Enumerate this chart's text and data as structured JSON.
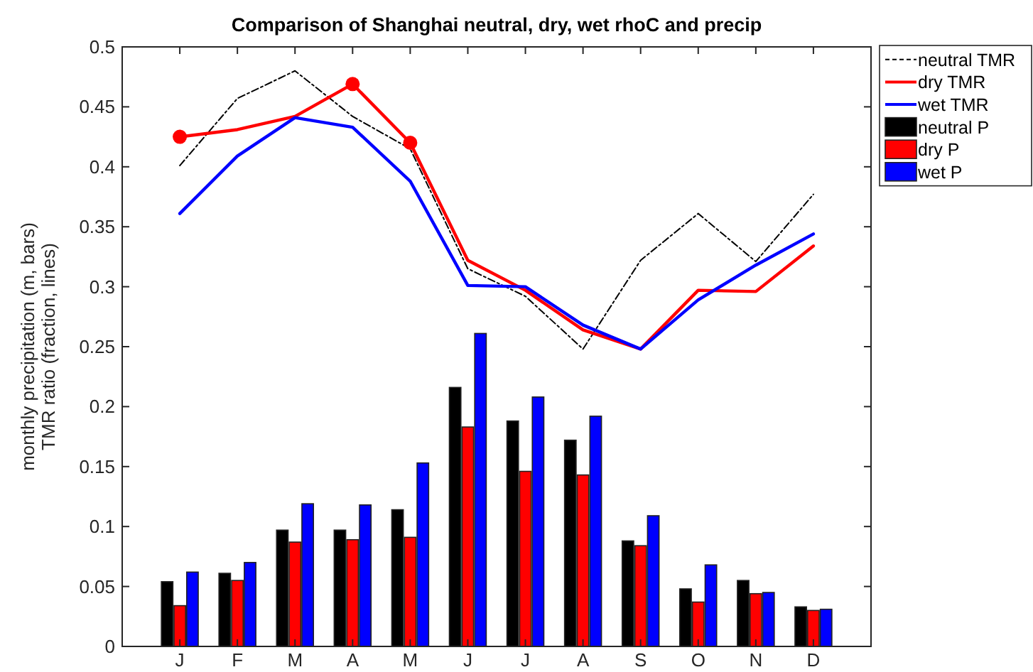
{
  "chart_data": {
    "type": "bar",
    "title": "Comparison of Shanghai neutral, dry, wet rhoC and precip",
    "ylabel": "monthly precipitation (m, bars)\nTMR ratio (fraction, lines)",
    "categories": [
      "J",
      "F",
      "M",
      "A",
      "M",
      "J",
      "J",
      "A",
      "S",
      "O",
      "N",
      "D"
    ],
    "ylim": [
      0,
      0.5
    ],
    "yticks": [
      0,
      0.05,
      0.1,
      0.15,
      0.2,
      0.25,
      0.3,
      0.35,
      0.4,
      0.45,
      0.5
    ],
    "legend": "top right",
    "series": [
      {
        "name": "neutral TMR",
        "type": "line",
        "color": "#000000",
        "line_style": "dashed",
        "values": [
          0.401,
          0.457,
          0.48,
          0.442,
          0.415,
          0.315,
          0.292,
          0.248,
          0.322,
          0.361,
          0.321,
          0.377
        ]
      },
      {
        "name": "dry TMR",
        "type": "line",
        "color": "#ff0000",
        "values": [
          0.425,
          0.431,
          0.442,
          0.469,
          0.42,
          0.322,
          0.297,
          0.264,
          0.248,
          0.297,
          0.296,
          0.334
        ]
      },
      {
        "name": "wet TMR",
        "type": "line",
        "color": "#0000ff",
        "values": [
          0.361,
          0.409,
          0.441,
          0.433,
          0.388,
          0.301,
          0.3,
          0.268,
          0.248,
          0.289,
          0.318,
          0.344
        ]
      },
      {
        "type": "scatter",
        "color": "#ff0000",
        "marker": "circle",
        "values": [
          0.425,
          null,
          null,
          0.469,
          0.42,
          null,
          null,
          null,
          null,
          null,
          null,
          null
        ]
      },
      {
        "name": "neutral P",
        "type": "bar",
        "color": "#000000",
        "values": [
          0.054,
          0.061,
          0.097,
          0.097,
          0.114,
          0.216,
          0.188,
          0.172,
          0.088,
          0.048,
          0.055,
          0.033
        ]
      },
      {
        "name": "dry P",
        "type": "bar",
        "color": "#ff0000",
        "values": [
          0.034,
          0.055,
          0.087,
          0.089,
          0.091,
          0.183,
          0.146,
          0.143,
          0.084,
          0.037,
          0.044,
          0.03
        ]
      },
      {
        "name": "wet P",
        "type": "bar",
        "color": "#0000ff",
        "values": [
          0.062,
          0.07,
          0.119,
          0.118,
          0.153,
          0.261,
          0.208,
          0.192,
          0.109,
          0.068,
          0.045,
          0.031
        ]
      }
    ]
  }
}
